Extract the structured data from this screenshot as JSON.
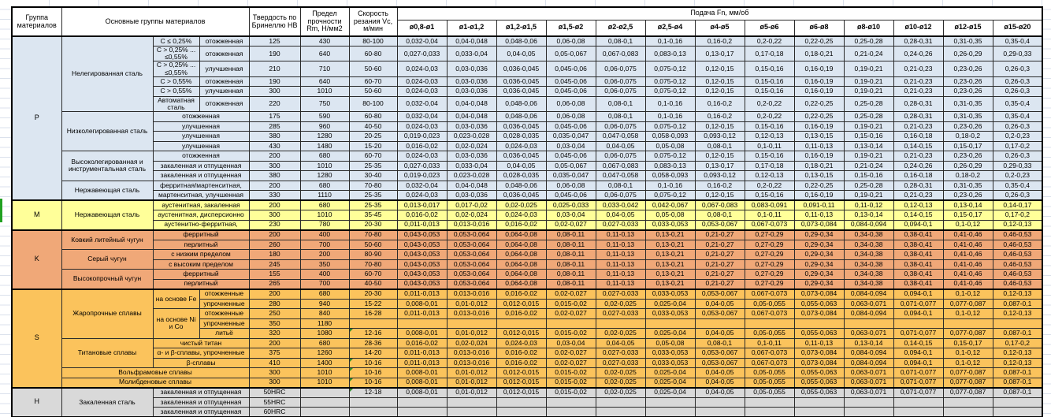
{
  "header": {
    "group_col": "Группа материалов",
    "main_col": "Основные группы материалов",
    "hb_col": "Твердость по Бринеллю HB",
    "rm_col": "Предел прочности Rm, Н/мм2",
    "vc_col": "Скорость резания Vc, м/мин",
    "feed_title": "Подача Fn, мм/об",
    "feed_cols": [
      "ø0,8-ø1",
      "ø1-ø1,2",
      "ø1,2-ø1,5",
      "ø1,5-ø2",
      "ø2-ø2,5",
      "ø2,5-ø4",
      "ø4-ø5",
      "ø5-ø6",
      "ø6-ø8",
      "ø8-ø10",
      "ø10-ø12",
      "ø12-ø15",
      "ø15-ø20"
    ]
  },
  "colors": {
    "p": "#DCE6F1",
    "m": "#FFFF99",
    "k": "#F0A878",
    "s": "#FBC35C",
    "h": "#D9D9D9",
    "marker": "#2E8B2E",
    "selection": "#21A121"
  },
  "feed_sets": {
    "A": [
      "0,032-0,04",
      "0,04-0,048",
      "0,048-0,06",
      "0,06-0,08",
      "0,08-0,1",
      "0,1-0,16",
      "0,16-0,2",
      "0,2-0,22",
      "0,22-0,25",
      "0,25-0,28",
      "0,28-0,31",
      "0,31-0,35",
      "0,35-0,4"
    ],
    "B": [
      "0,027-0,033",
      "0,033-0,04",
      "0,04-0,05",
      "0,05-0,067",
      "0,067-0,083",
      "0,083-0,13",
      "0,13-0,17",
      "0,17-0,18",
      "0,18-0,21",
      "0,21-0,24",
      "0,24-0,26",
      "0,26-0,29",
      "0,29-0,33"
    ],
    "C": [
      "0,024-0,03",
      "0,03-0,036",
      "0,036-0,045",
      "0,045-0,06",
      "0,06-0,075",
      "0,075-0,12",
      "0,12-0,15",
      "0,15-0,16",
      "0,16-0,19",
      "0,19-0,21",
      "0,21-0,23",
      "0,23-0,26",
      "0,26-0,3"
    ],
    "D": [
      "0,019-0,023",
      "0,023-0,028",
      "0,028-0,035",
      "0,035-0,047",
      "0,047-0,058",
      "0,058-0,093",
      "0,093-0,12",
      "0,12-0,13",
      "0,13-0,15",
      "0,15-0,16",
      "0,16-0,18",
      "0,18-0,2",
      "0,2-0,23"
    ],
    "E": [
      "0,016-0,02",
      "0,02-0,024",
      "0,024-0,03",
      "0,03-0,04",
      "0,04-0,05",
      "0,05-0,08",
      "0,08-0,1",
      "0,1-0,11",
      "0,11-0,13",
      "0,13-0,14",
      "0,14-0,15",
      "0,15-0,17",
      "0,17-0,2"
    ],
    "F": [
      "0,013-0,017",
      "0,017-0,02",
      "0,02-0,025",
      "0,025-0,033",
      "0,033-0,042",
      "0,042-0,067",
      "0,067-0,083",
      "0,083-0,091",
      "0,091-0,11",
      "0,11-0,12",
      "0,12-0,13",
      "0,13-0,14",
      "0,14-0,17"
    ],
    "G": [
      "0,011-0,013",
      "0,013-0,016",
      "0,016-0,02",
      "0,02-0,027",
      "0,027-0,033",
      "0,033-0,053",
      "0,053-0,067",
      "0,067-0,073",
      "0,073-0,084",
      "0,084-0,094",
      "0,094-0,1",
      "0,1-0,12",
      "0,12-0,13"
    ],
    "K": [
      "0,043-0,053",
      "0,053-0,064",
      "0,064-0,08",
      "0,08-0,11",
      "0,11-0,13",
      "0,13-0,21",
      "0,21-0,27",
      "0,27-0,29",
      "0,29-0,34",
      "0,34-0,38",
      "0,38-0,41",
      "0,41-0,46",
      "0,46-0,53"
    ],
    "H2": [
      "0,008-0,01",
      "0,01-0,012",
      "0,012-0,015",
      "0,015-0,02",
      "0,02-0,025",
      "0,025-0,04",
      "0,04-0,05",
      "0,05-0,055",
      "0,055-0,063",
      "0,063-0,071",
      "0,071-0,077",
      "0,077-0,087",
      "0,087-0,1"
    ]
  },
  "rows": [
    {
      "g": "p",
      "sep": true,
      "feeds": "A",
      "cells": [
        {
          "t": "P",
          "rs": 15,
          "n": "group-letter",
          "cls": "letter"
        },
        {
          "t": "Нелегированная сталь",
          "rs": 6,
          "n": "material-group"
        },
        {
          "t": "С ≤ 0,25%",
          "n": "subgroup"
        },
        {
          "t": "отожженная",
          "n": "treatment-state"
        },
        {
          "t": "125",
          "n": "hardness"
        },
        {
          "t": "430",
          "n": "strength"
        },
        {
          "t": "80-100",
          "n": "speed"
        }
      ]
    },
    {
      "g": "p",
      "tall": true,
      "feeds": "B",
      "cells": [
        {
          "t": "С > 0,25% ... ≤0,55%",
          "n": "subgroup"
        },
        {
          "t": "отожженная",
          "n": "treatment-state"
        },
        {
          "t": "190",
          "n": "hardness"
        },
        {
          "t": "640",
          "n": "strength"
        },
        {
          "t": "60-80",
          "n": "speed"
        }
      ]
    },
    {
      "g": "p",
      "tall": true,
      "feeds": "C",
      "cells": [
        {
          "t": "С > 0,25% ... ≤0,55%",
          "n": "subgroup"
        },
        {
          "t": "улучшенная",
          "n": "treatment-state"
        },
        {
          "t": "210",
          "n": "hardness"
        },
        {
          "t": "710",
          "n": "strength"
        },
        {
          "t": "50-60",
          "n": "speed"
        }
      ]
    },
    {
      "g": "p",
      "feeds": "C",
      "cells": [
        {
          "t": "С > 0,55%",
          "n": "subgroup"
        },
        {
          "t": "отожженная",
          "n": "treatment-state"
        },
        {
          "t": "190",
          "n": "hardness"
        },
        {
          "t": "640",
          "n": "strength"
        },
        {
          "t": "60-70",
          "n": "speed"
        }
      ]
    },
    {
      "g": "p",
      "feeds": "C",
      "cells": [
        {
          "t": "С > 0,55%",
          "n": "subgroup"
        },
        {
          "t": "улучшенная",
          "n": "treatment-state"
        },
        {
          "t": "300",
          "n": "hardness"
        },
        {
          "t": "1010",
          "n": "strength"
        },
        {
          "t": "50-60",
          "n": "speed"
        }
      ]
    },
    {
      "g": "p",
      "tall": true,
      "feeds": "A",
      "cells": [
        {
          "t": "Автоматная сталь",
          "n": "subgroup"
        },
        {
          "t": "отожженная",
          "n": "treatment-state"
        },
        {
          "t": "220",
          "n": "hardness"
        },
        {
          "t": "750",
          "n": "strength"
        },
        {
          "t": "80-100",
          "n": "speed"
        }
      ]
    },
    {
      "g": "p",
      "feeds": "A",
      "cells": [
        {
          "t": "Низколегированная сталь",
          "rs": 4,
          "n": "material-group"
        },
        {
          "t": "отожженная",
          "cs": 2,
          "n": "treatment-state"
        },
        {
          "t": "175",
          "n": "hardness"
        },
        {
          "t": "590",
          "n": "strength"
        },
        {
          "t": "60-80",
          "n": "speed"
        }
      ]
    },
    {
      "g": "p",
      "feeds": "C",
      "cells": [
        {
          "t": "улучшенная",
          "cs": 2,
          "n": "treatment-state"
        },
        {
          "t": "285",
          "n": "hardness"
        },
        {
          "t": "960",
          "n": "strength"
        },
        {
          "t": "40-50",
          "n": "speed"
        }
      ]
    },
    {
      "g": "p",
      "feeds": "D",
      "cells": [
        {
          "t": "улучшенная",
          "cs": 2,
          "n": "treatment-state"
        },
        {
          "t": "380",
          "n": "hardness"
        },
        {
          "t": "1280",
          "n": "strength"
        },
        {
          "t": "20-25",
          "n": "speed"
        }
      ]
    },
    {
      "g": "p",
      "feeds": "E",
      "cells": [
        {
          "t": "улучшенная",
          "cs": 2,
          "n": "treatment-state"
        },
        {
          "t": "430",
          "n": "hardness"
        },
        {
          "t": "1480",
          "n": "strength"
        },
        {
          "t": "15-20",
          "n": "speed"
        }
      ]
    },
    {
      "g": "p",
      "feeds": "C",
      "cells": [
        {
          "t": "Высоколегированная и инструментальная сталь",
          "rs": 3,
          "n": "material-group"
        },
        {
          "t": "отожженная",
          "cs": 2,
          "n": "treatment-state"
        },
        {
          "t": "200",
          "n": "hardness"
        },
        {
          "t": "680",
          "n": "strength"
        },
        {
          "t": "60-70",
          "n": "speed"
        }
      ]
    },
    {
      "g": "p",
      "feeds": "B",
      "cells": [
        {
          "t": "закаленная и отпущенная",
          "cs": 2,
          "n": "treatment-state"
        },
        {
          "t": "300",
          "n": "hardness"
        },
        {
          "t": "1010",
          "n": "strength"
        },
        {
          "t": "25-35",
          "n": "speed"
        }
      ]
    },
    {
      "g": "p",
      "feeds": "D",
      "cells": [
        {
          "t": "закаленная и отпущенная",
          "cs": 2,
          "n": "treatment-state"
        },
        {
          "t": "380",
          "n": "hardness"
        },
        {
          "t": "1280",
          "n": "strength"
        },
        {
          "t": "30-40",
          "n": "speed"
        }
      ]
    },
    {
      "g": "p",
      "feeds": "A",
      "cells": [
        {
          "t": "Нержавеющая сталь",
          "rs": 2,
          "n": "material-group"
        },
        {
          "t": "ферритная/мартенситная,",
          "cs": 2,
          "n": "treatment-state"
        },
        {
          "t": "200",
          "n": "hardness"
        },
        {
          "t": "680",
          "n": "strength"
        },
        {
          "t": "70-80",
          "n": "speed"
        }
      ]
    },
    {
      "g": "p",
      "feeds": "C",
      "cells": [
        {
          "t": "мартенситная, улучшенная",
          "cs": 2,
          "n": "treatment-state"
        },
        {
          "t": "330",
          "n": "hardness"
        },
        {
          "t": "1110",
          "n": "strength"
        },
        {
          "t": "25-35",
          "n": "speed"
        }
      ]
    },
    {
      "g": "m",
      "sep": true,
      "feeds": "F",
      "cells": [
        {
          "t": "M",
          "rs": 3,
          "n": "group-letter",
          "cls": "letter"
        },
        {
          "t": "Нержавеющая сталь",
          "rs": 3,
          "n": "material-group"
        },
        {
          "t": "аустенитная, закаленная",
          "cs": 2,
          "n": "treatment-state"
        },
        {
          "t": "200",
          "n": "hardness"
        },
        {
          "t": "680",
          "n": "strength"
        },
        {
          "t": "25-35",
          "n": "speed"
        }
      ]
    },
    {
      "g": "m",
      "feeds": "E",
      "cells": [
        {
          "t": "аустенитная, дисперсионно",
          "cs": 2,
          "n": "treatment-state"
        },
        {
          "t": "300",
          "n": "hardness"
        },
        {
          "t": "1010",
          "n": "strength"
        },
        {
          "t": "35-45",
          "n": "speed"
        }
      ]
    },
    {
      "g": "m",
      "feeds": "G",
      "cells": [
        {
          "t": "аустенитно-ферритная,",
          "cs": 2,
          "n": "treatment-state"
        },
        {
          "t": "230",
          "n": "hardness"
        },
        {
          "t": "780",
          "n": "strength"
        },
        {
          "t": "20-30",
          "n": "speed"
        }
      ]
    },
    {
      "g": "k",
      "sep": true,
      "feeds": "K",
      "cells": [
        {
          "t": "K",
          "rs": 6,
          "n": "group-letter",
          "cls": "letter"
        },
        {
          "t": "Ковкий литейный чугун",
          "rs": 2,
          "n": "material-group"
        },
        {
          "t": "ферритный",
          "cs": 2,
          "n": "treatment-state"
        },
        {
          "t": "200",
          "n": "hardness"
        },
        {
          "t": "400",
          "n": "strength"
        },
        {
          "t": "70-80",
          "n": "speed"
        }
      ]
    },
    {
      "g": "k",
      "feeds": "K",
      "cells": [
        {
          "t": "перлитный",
          "cs": 2,
          "n": "treatment-state"
        },
        {
          "t": "260",
          "n": "hardness"
        },
        {
          "t": "700",
          "n": "strength"
        },
        {
          "t": "50-60",
          "n": "speed"
        }
      ]
    },
    {
      "g": "k",
      "feeds": "K",
      "cells": [
        {
          "t": "Серый чугун",
          "rs": 2,
          "n": "material-group"
        },
        {
          "t": "с низким пределом",
          "cs": 2,
          "n": "treatment-state"
        },
        {
          "t": "180",
          "n": "hardness"
        },
        {
          "t": "200",
          "n": "strength"
        },
        {
          "t": "80-90",
          "n": "speed"
        }
      ]
    },
    {
      "g": "k",
      "feeds": "K",
      "cells": [
        {
          "t": "с высоким пределом",
          "cs": 2,
          "n": "treatment-state"
        },
        {
          "t": "245",
          "n": "hardness"
        },
        {
          "t": "350",
          "n": "strength"
        },
        {
          "t": "70-80",
          "n": "speed"
        }
      ]
    },
    {
      "g": "k",
      "feeds": "K",
      "cells": [
        {
          "t": "Высокопрочный чугун",
          "rs": 2,
          "n": "material-group"
        },
        {
          "t": "ферритный",
          "cs": 2,
          "n": "treatment-state"
        },
        {
          "t": "155",
          "n": "hardness"
        },
        {
          "t": "400",
          "n": "strength"
        },
        {
          "t": "60-70",
          "n": "speed"
        }
      ]
    },
    {
      "g": "k",
      "feeds": "K",
      "cells": [
        {
          "t": "перлитный",
          "cs": 2,
          "n": "treatment-state"
        },
        {
          "t": "265",
          "n": "hardness"
        },
        {
          "t": "700",
          "n": "strength"
        },
        {
          "t": "40-50",
          "n": "speed"
        }
      ]
    },
    {
      "g": "s",
      "sep": true,
      "feeds": "G",
      "cells": [
        {
          "t": "S",
          "rs": 10,
          "n": "group-letter",
          "cls": "letter"
        },
        {
          "t": "Жаропрочные сплавы",
          "rs": 5,
          "n": "material-group"
        },
        {
          "t": "на основе Fe",
          "rs": 2,
          "n": "subgroup"
        },
        {
          "t": "отожженные",
          "n": "treatment-state"
        },
        {
          "t": "200",
          "n": "hardness"
        },
        {
          "t": "680",
          "n": "strength"
        },
        {
          "t": "20-30",
          "n": "speed"
        }
      ]
    },
    {
      "g": "s",
      "feeds": "H2",
      "cells": [
        {
          "t": "упрочненные",
          "n": "treatment-state"
        },
        {
          "t": "280",
          "n": "hardness"
        },
        {
          "t": "940",
          "n": "strength"
        },
        {
          "t": "15-22",
          "n": "speed"
        }
      ]
    },
    {
      "g": "s",
      "feeds": "G",
      "cells": [
        {
          "t": "на основе Ni и Со",
          "rs": 3,
          "n": "subgroup"
        },
        {
          "t": "отожженные",
          "n": "treatment-state"
        },
        {
          "t": "250",
          "n": "hardness"
        },
        {
          "t": "840",
          "n": "strength"
        },
        {
          "t": "16-28",
          "n": "speed"
        }
      ]
    },
    {
      "g": "s",
      "cells": [
        {
          "t": "упрочненные",
          "n": "treatment-state"
        },
        {
          "t": "350",
          "n": "hardness"
        },
        {
          "t": "1180",
          "n": "strength"
        },
        {
          "t": "",
          "n": "speed"
        }
      ]
    },
    {
      "g": "s",
      "feeds": "H2",
      "cells": [
        {
          "t": "литьё",
          "n": "treatment-state"
        },
        {
          "t": "320",
          "n": "hardness"
        },
        {
          "t": "1080",
          "n": "strength"
        },
        {
          "t": "12-16",
          "n": "speed",
          "m": true
        }
      ]
    },
    {
      "g": "s",
      "feeds": "E",
      "cells": [
        {
          "t": "Титановые сплавы",
          "rs": 3,
          "n": "material-group"
        },
        {
          "t": "чистый титан",
          "cs": 2,
          "n": "treatment-state"
        },
        {
          "t": "200",
          "n": "hardness"
        },
        {
          "t": "680",
          "n": "strength"
        },
        {
          "t": "28-36",
          "n": "speed"
        }
      ]
    },
    {
      "g": "s",
      "feeds": "G",
      "cells": [
        {
          "t": "α- и β-сплавы, упрочненные",
          "cs": 2,
          "n": "treatment-state"
        },
        {
          "t": "375",
          "n": "hardness"
        },
        {
          "t": "1260",
          "n": "strength"
        },
        {
          "t": "14-20",
          "n": "speed"
        }
      ]
    },
    {
      "g": "s",
      "feeds": "G",
      "cells": [
        {
          "t": "β-сплавы",
          "cs": 2,
          "n": "treatment-state"
        },
        {
          "t": "410",
          "n": "hardness"
        },
        {
          "t": "1400",
          "n": "strength"
        },
        {
          "t": "10-16",
          "n": "speed",
          "m": true
        }
      ]
    },
    {
      "g": "s",
      "feeds": "H2",
      "cells": [
        {
          "t": "Вольфрамовые сплавы",
          "cs": 3,
          "n": "material-group"
        },
        {
          "t": "300",
          "n": "hardness"
        },
        {
          "t": "1010",
          "n": "strength"
        },
        {
          "t": "10-16",
          "n": "speed",
          "m": true
        }
      ]
    },
    {
      "g": "s",
      "feeds": "H2",
      "cells": [
        {
          "t": "Молибденовые сплавы",
          "cs": 3,
          "n": "material-group"
        },
        {
          "t": "300",
          "n": "hardness"
        },
        {
          "t": "1010",
          "n": "strength"
        },
        {
          "t": "10-16",
          "n": "speed",
          "m": true
        }
      ]
    },
    {
      "g": "h",
      "sep": true,
      "feeds": "H2",
      "cells": [
        {
          "t": "H",
          "rs": 3,
          "n": "group-letter",
          "cls": "letter"
        },
        {
          "t": "Закаленная сталь",
          "rs": 3,
          "n": "material-group"
        },
        {
          "t": "закаленная и отпущенная",
          "cs": 2,
          "n": "treatment-state"
        },
        {
          "t": "50HRC",
          "n": "hardness"
        },
        {
          "t": "",
          "n": "strength"
        },
        {
          "t": "12-18",
          "n": "speed",
          "m": true
        }
      ]
    },
    {
      "g": "h",
      "cells": [
        {
          "t": "закаленная и отпущенная",
          "cs": 2,
          "n": "treatment-state"
        },
        {
          "t": "55HRC",
          "n": "hardness"
        },
        {
          "t": "",
          "n": "strength"
        },
        {
          "t": "",
          "n": "speed"
        }
      ]
    },
    {
      "g": "h",
      "cells": [
        {
          "t": "закаленная и отпущенная",
          "cs": 2,
          "n": "treatment-state"
        },
        {
          "t": "60HRC",
          "n": "hardness"
        },
        {
          "t": "",
          "n": "strength"
        },
        {
          "t": "",
          "n": "speed"
        }
      ]
    }
  ]
}
